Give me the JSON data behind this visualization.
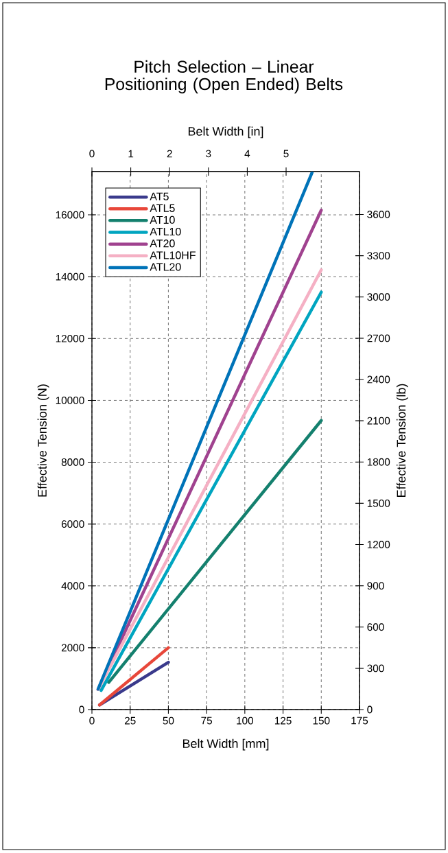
{
  "chart_data": {
    "type": "line",
    "title": "Pitch Selection – Linear Positioning (Open Ended) Belts",
    "xlabel": "Belt Width [mm]",
    "x2label": "Belt Width [in]",
    "ylabel": "Effective Tension (N)",
    "y2label": "Effective Tension (lb)",
    "xlim": [
      0,
      175
    ],
    "xticks": [
      0,
      25,
      50,
      75,
      100,
      125,
      150,
      175
    ],
    "x2lim": [
      0,
      6.89
    ],
    "x2ticks": [
      0,
      1,
      2,
      3,
      4,
      5
    ],
    "ylim": [
      0,
      17400
    ],
    "yticks": [
      0,
      2000,
      4000,
      6000,
      8000,
      10000,
      12000,
      14000,
      16000
    ],
    "y2lim": [
      0,
      3912
    ],
    "y2ticks": [
      0,
      300,
      600,
      900,
      1200,
      1500,
      1800,
      2100,
      2400,
      2700,
      3000,
      3300,
      3600
    ],
    "grid": true,
    "legend": "top left",
    "marker": "none",
    "line_style": "solid",
    "series": [
      {
        "name": "AT5",
        "color": "#3a3a8c",
        "x": [
          5,
          50
        ],
        "values": [
          150,
          1530
        ]
      },
      {
        "name": "ATL5",
        "color": "#e8473a",
        "x": [
          5,
          50
        ],
        "values": [
          150,
          2000
        ]
      },
      {
        "name": "AT10",
        "color": "#14806e",
        "x": [
          11,
          150
        ],
        "values": [
          880,
          9350
        ]
      },
      {
        "name": "ATL10",
        "color": "#00a5c0",
        "x": [
          6,
          150
        ],
        "values": [
          620,
          13500
        ]
      },
      {
        "name": "AT20",
        "color": "#a0428f",
        "x": [
          4,
          150
        ],
        "values": [
          650,
          16150
        ]
      },
      {
        "name": "ATL10HF",
        "color": "#f5b0c4",
        "x": [
          4,
          150
        ],
        "values": [
          650,
          14220
        ]
      },
      {
        "name": "ATL20",
        "color": "#0073b8",
        "x": [
          4,
          144
        ],
        "values": [
          660,
          17370
        ]
      }
    ]
  }
}
